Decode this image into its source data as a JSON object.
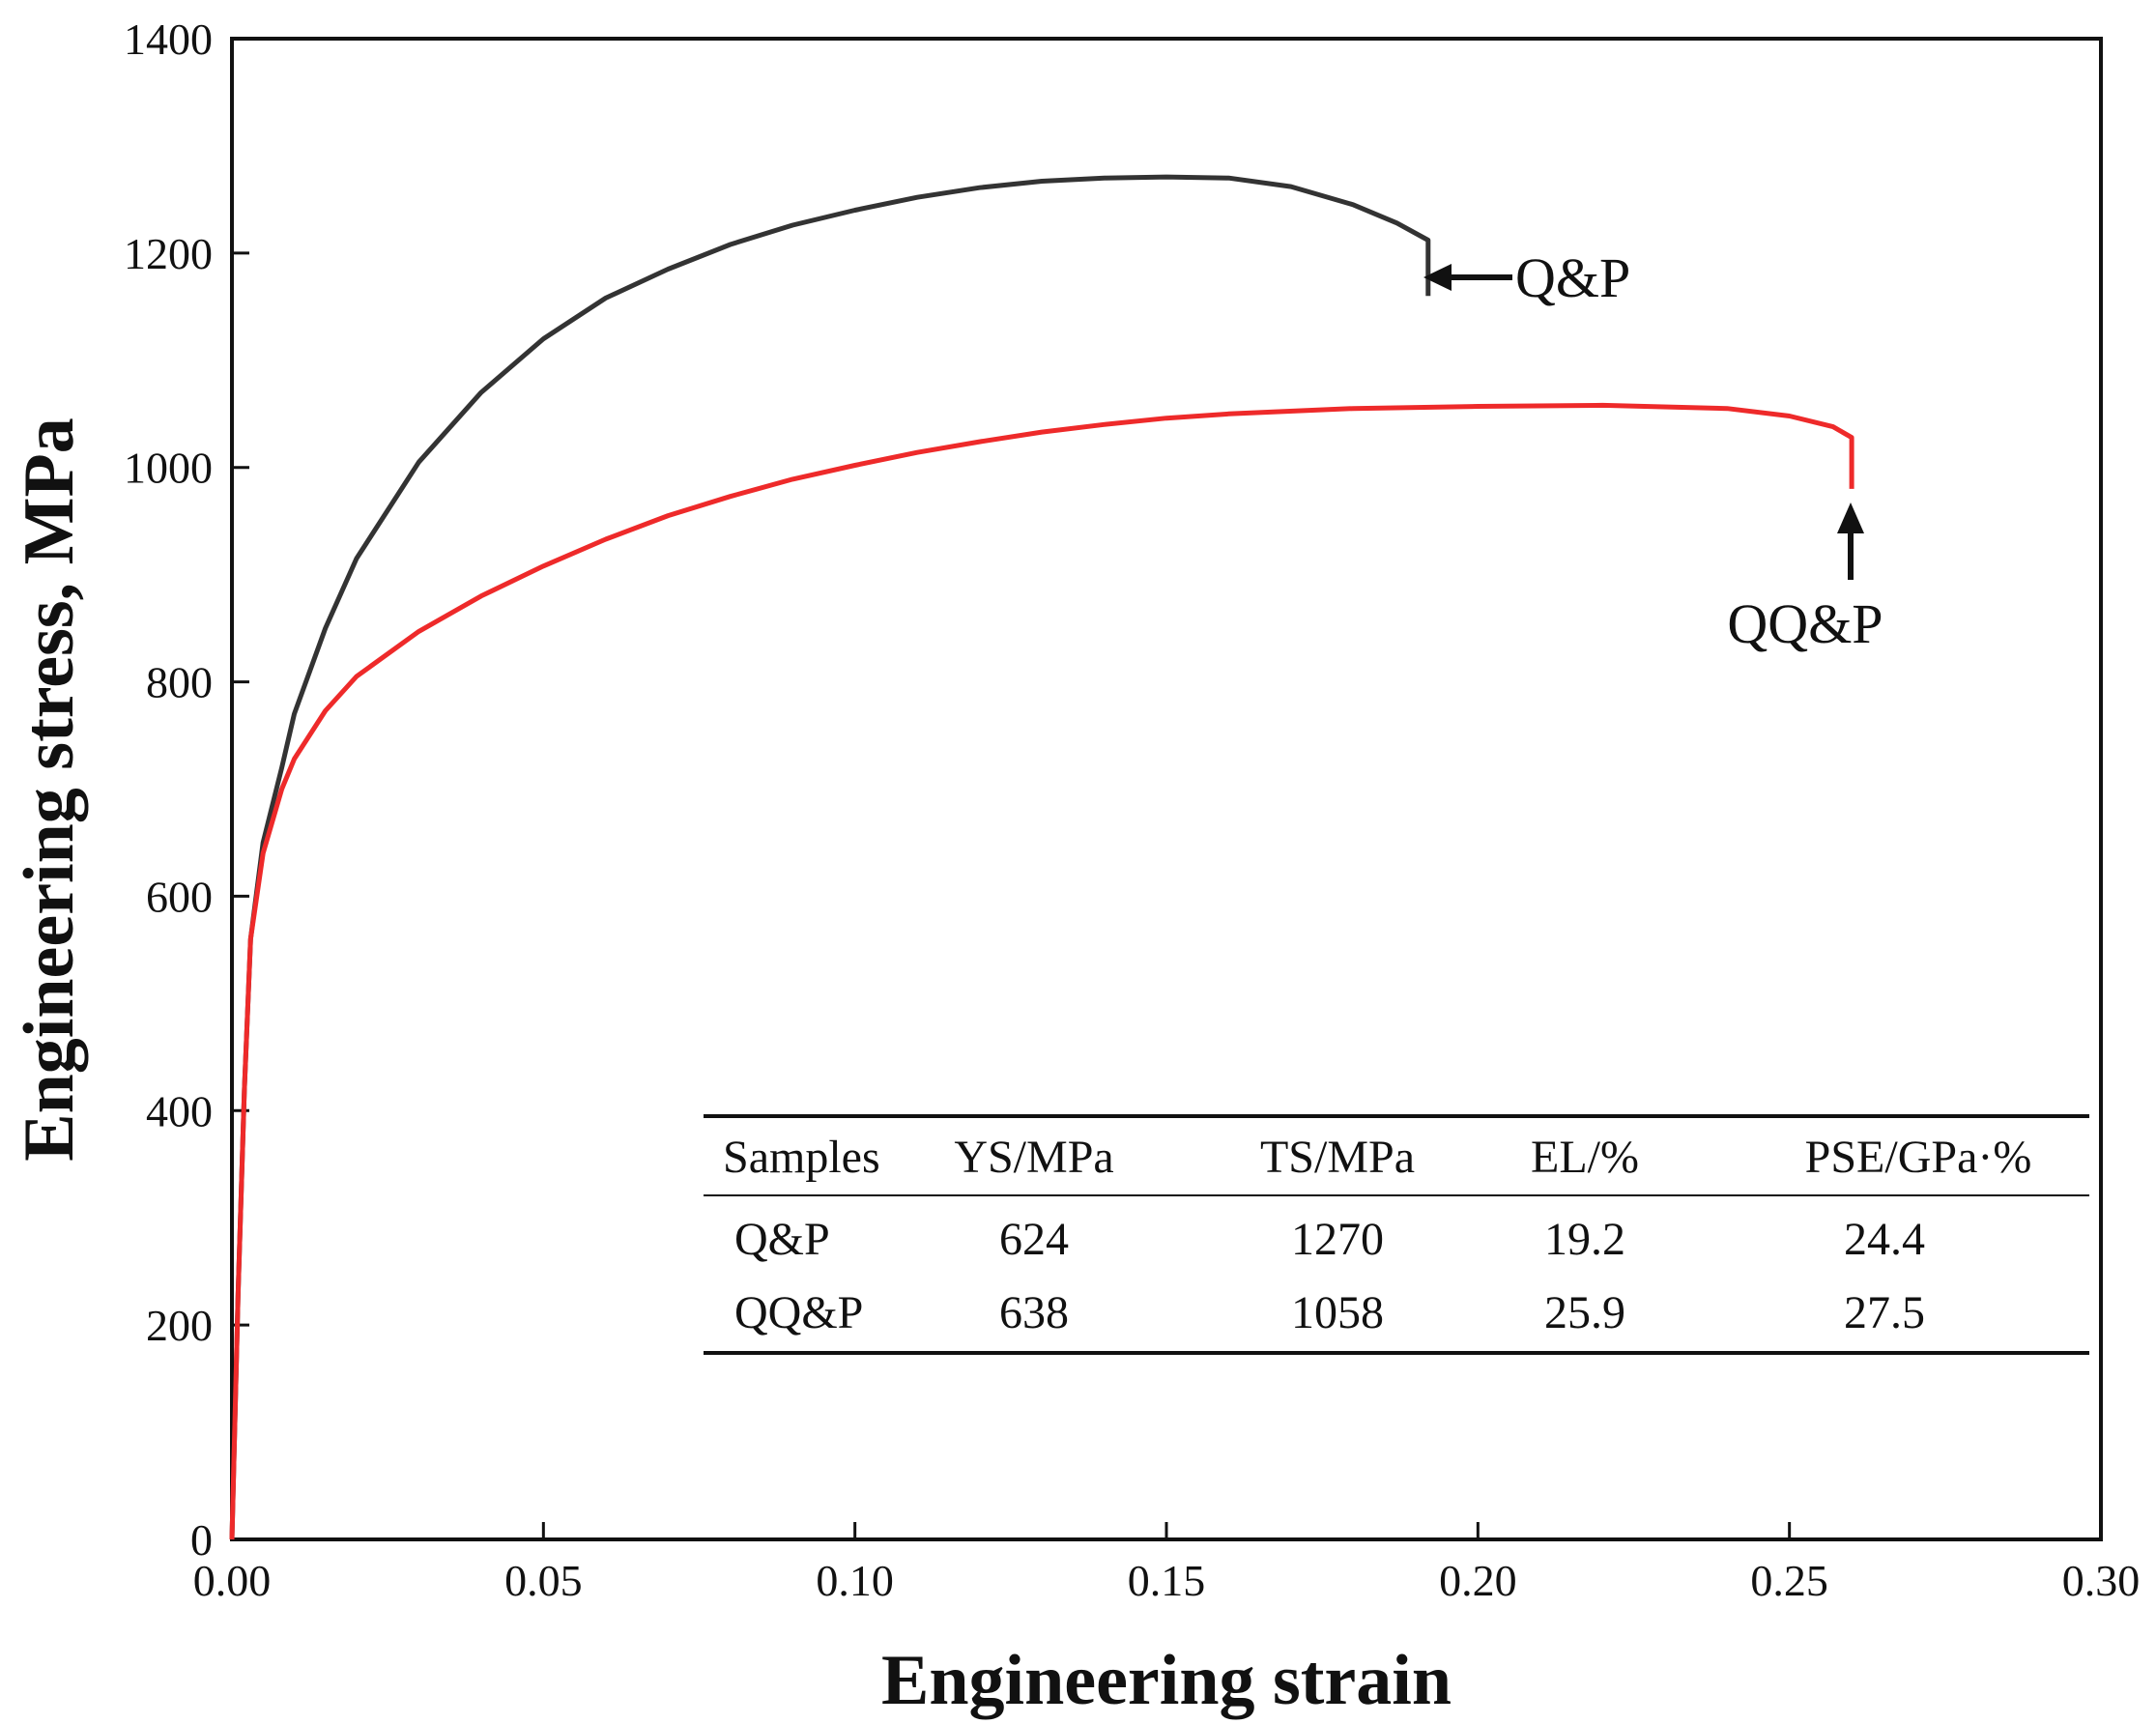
{
  "chart_data": {
    "type": "line",
    "xlabel": "Engineering strain",
    "ylabel": "Engineering stress, MPa",
    "xlim": [
      0,
      0.3
    ],
    "ylim": [
      0,
      1400
    ],
    "x_ticks": [
      "0.00",
      "0.05",
      "0.10",
      "0.15",
      "0.20",
      "0.25",
      "0.30"
    ],
    "y_ticks": [
      "0",
      "200",
      "400",
      "600",
      "800",
      "1000",
      "1200",
      "1400"
    ],
    "series": [
      {
        "name": "Q&P",
        "color": "#333333",
        "points": [
          [
            0,
            0
          ],
          [
            0.001,
            230
          ],
          [
            0.002,
            420
          ],
          [
            0.003,
            560
          ],
          [
            0.005,
            650
          ],
          [
            0.008,
            720
          ],
          [
            0.01,
            770
          ],
          [
            0.015,
            850
          ],
          [
            0.02,
            915
          ],
          [
            0.03,
            1005
          ],
          [
            0.04,
            1070
          ],
          [
            0.05,
            1120
          ],
          [
            0.06,
            1158
          ],
          [
            0.07,
            1185
          ],
          [
            0.08,
            1208
          ],
          [
            0.09,
            1226
          ],
          [
            0.1,
            1240
          ],
          [
            0.11,
            1252
          ],
          [
            0.12,
            1261
          ],
          [
            0.13,
            1267
          ],
          [
            0.14,
            1270
          ],
          [
            0.15,
            1271
          ],
          [
            0.16,
            1270
          ],
          [
            0.17,
            1262
          ],
          [
            0.18,
            1245
          ],
          [
            0.187,
            1228
          ],
          [
            0.192,
            1212
          ],
          [
            0.192,
            1160
          ]
        ]
      },
      {
        "name": "QQ&P",
        "color": "#ee2a2a",
        "points": [
          [
            0,
            0
          ],
          [
            0.001,
            230
          ],
          [
            0.002,
            420
          ],
          [
            0.003,
            560
          ],
          [
            0.005,
            640
          ],
          [
            0.008,
            700
          ],
          [
            0.01,
            728
          ],
          [
            0.015,
            773
          ],
          [
            0.02,
            805
          ],
          [
            0.03,
            847
          ],
          [
            0.04,
            880
          ],
          [
            0.05,
            908
          ],
          [
            0.06,
            933
          ],
          [
            0.07,
            955
          ],
          [
            0.08,
            973
          ],
          [
            0.09,
            989
          ],
          [
            0.1,
            1002
          ],
          [
            0.11,
            1014
          ],
          [
            0.12,
            1024
          ],
          [
            0.13,
            1033
          ],
          [
            0.14,
            1040
          ],
          [
            0.15,
            1046
          ],
          [
            0.16,
            1050
          ],
          [
            0.18,
            1055
          ],
          [
            0.2,
            1057
          ],
          [
            0.22,
            1058
          ],
          [
            0.24,
            1055
          ],
          [
            0.25,
            1048
          ],
          [
            0.257,
            1038
          ],
          [
            0.26,
            1028
          ],
          [
            0.26,
            980
          ]
        ]
      }
    ],
    "annotations": [
      {
        "label": "Q&P",
        "x": 0.192,
        "y": 1180,
        "arrow": "left"
      },
      {
        "label": "QQ&P",
        "x": 0.26,
        "y": 970,
        "arrow": "up"
      }
    ],
    "inset_table": {
      "headers": [
        "Samples",
        "YS/MPa",
        "TS/MPa",
        "EL/%",
        "PSE/GPa·%"
      ],
      "rows": [
        [
          "Q&P",
          "624",
          "1270",
          "19.2",
          "24.4"
        ],
        [
          "QQ&P",
          "638",
          "1058",
          "25.9",
          "27.5"
        ]
      ]
    }
  }
}
